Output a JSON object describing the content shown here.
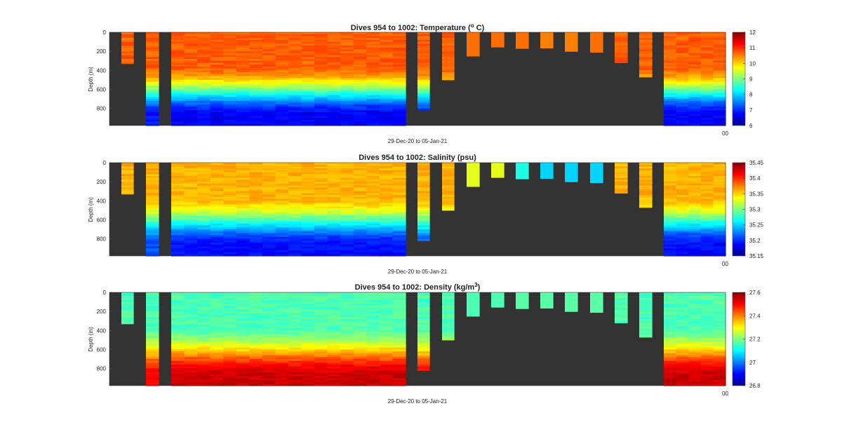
{
  "figure": {
    "background": "#ffffff",
    "panel_background": "#333333"
  },
  "chart_data": [
    {
      "type": "heatmap",
      "title": "Dives 954 to 1002: Temperature (o C)",
      "title_main": "Dives 954 to 1002: Temperature (",
      "title_super": "o",
      "title_tail": " C)",
      "ylabel": "Depth (m)",
      "xlabel": "29-Dec-20 to 05-Jan-21",
      "y_ticks": [
        "0",
        "200",
        "400",
        "600",
        "800"
      ],
      "y_tick_values": [
        0,
        200,
        400,
        600,
        800
      ],
      "ylim": [
        0,
        980
      ],
      "y_reversed": true,
      "x_tick_label": "00",
      "clim": [
        6,
        12
      ],
      "colorbar_ticks": [
        "6",
        "7",
        "8",
        "9",
        "10",
        "11",
        "12"
      ],
      "colorbar_tick_values": [
        6,
        7,
        8,
        9,
        10,
        11,
        12
      ],
      "colormap": "jet",
      "surface_value": 10.7,
      "deep_value": 6.9,
      "deep_value_wide": 6.7,
      "shallow_values": [
        10.6,
        10.6,
        10.6,
        10.5,
        10.5,
        10.6,
        10.6,
        10.5,
        10.6,
        10.6
      ]
    },
    {
      "type": "heatmap",
      "title": "Dives 954 to 1002: Salinity (psu)",
      "ylabel": "Depth (m)",
      "xlabel": "29-Dec-20 to 05-Jan-21",
      "y_ticks": [
        "0",
        "200",
        "400",
        "600",
        "800"
      ],
      "y_tick_values": [
        0,
        200,
        400,
        600,
        800
      ],
      "ylim": [
        0,
        980
      ],
      "y_reversed": true,
      "x_tick_label": "00",
      "clim": [
        35.15,
        35.45
      ],
      "colorbar_ticks": [
        "35.15",
        "35.2",
        "35.25",
        "35.3",
        "35.35",
        "35.4",
        "35.45"
      ],
      "colorbar_tick_values": [
        35.15,
        35.2,
        35.25,
        35.3,
        35.35,
        35.4,
        35.45
      ],
      "colormap": "jet",
      "surface_value": 35.36,
      "deep_value": 35.21,
      "deep_value_wide": 35.19,
      "shallow_values": [
        35.33,
        35.33,
        35.27,
        35.25,
        35.25,
        35.25,
        35.26,
        35.28,
        35.33,
        35.33
      ]
    },
    {
      "type": "heatmap",
      "title": "Dives 954 to 1002: Density (kg/m3)",
      "title_main": "Dives 954 to 1002: Density (kg/m",
      "title_super": "3",
      "title_tail": ")",
      "ylabel": "Depth (m)",
      "xlabel": "29-Dec-20 to 05-Jan-21",
      "y_ticks": [
        "0",
        "200",
        "400",
        "600",
        "800"
      ],
      "y_tick_values": [
        0,
        200,
        400,
        600,
        800
      ],
      "ylim": [
        0,
        980
      ],
      "y_reversed": true,
      "x_tick_label": "00",
      "clim": [
        26.8,
        27.6
      ],
      "colorbar_ticks": [
        "26.8",
        "27",
        "27.2",
        "27.4",
        "27.6"
      ],
      "colorbar_tick_values": [
        26.8,
        27.0,
        27.2,
        27.4,
        27.6
      ],
      "colormap": "jet",
      "surface_value": 27.16,
      "deep_value": 27.5,
      "deep_value_wide": 27.54,
      "shallow_values": [
        27.16,
        27.16,
        27.17,
        27.17,
        27.17,
        27.17,
        27.17,
        27.16,
        27.16,
        27.16
      ]
    }
  ],
  "profiles": {
    "groups": [
      {
        "kind": "narrow",
        "max_depth": 330
      },
      {
        "kind": "narrow",
        "max_depth": 980
      },
      {
        "kind": "block",
        "count": 18,
        "max_depth": 980
      },
      {
        "kind": "narrow",
        "max_depth": 820
      },
      {
        "kind": "narrow",
        "max_depth": 500
      },
      {
        "kind": "narrow",
        "max_depth": 250
      },
      {
        "kind": "narrow",
        "max_depth": 155
      },
      {
        "kind": "narrow",
        "max_depth": 170
      },
      {
        "kind": "narrow",
        "max_depth": 165
      },
      {
        "kind": "narrow",
        "max_depth": 200
      },
      {
        "kind": "narrow",
        "max_depth": 210
      },
      {
        "kind": "narrow",
        "max_depth": 320
      },
      {
        "kind": "narrow",
        "max_depth": 470
      },
      {
        "kind": "block",
        "count": 5,
        "max_depth": 980
      }
    ],
    "thermocline_top": 360,
    "thermocline_bottom": 880
  }
}
